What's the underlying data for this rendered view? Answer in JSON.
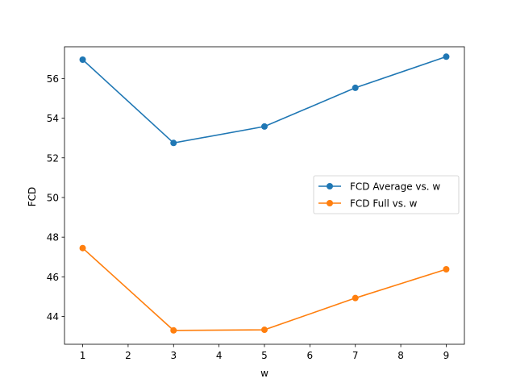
{
  "chart_data": {
    "type": "line",
    "title": "",
    "xlabel": "w",
    "ylabel": "FCD",
    "xlim": [
      0.6,
      9.4
    ],
    "ylim": [
      42.6,
      57.6
    ],
    "xticks": [
      1,
      2,
      3,
      4,
      5,
      6,
      7,
      8,
      9
    ],
    "yticks": [
      44,
      46,
      48,
      50,
      52,
      54,
      56
    ],
    "x": [
      1,
      3,
      5,
      7,
      9
    ],
    "grid": false,
    "legend_position": "center-right",
    "series": [
      {
        "name": "FCD Average vs. w",
        "color": "#1f77b4",
        "values": [
          56.95,
          52.75,
          53.58,
          55.53,
          57.1
        ]
      },
      {
        "name": "FCD Full vs. w",
        "color": "#ff7f0e",
        "values": [
          47.45,
          43.3,
          43.33,
          44.93,
          46.38
        ]
      }
    ]
  }
}
